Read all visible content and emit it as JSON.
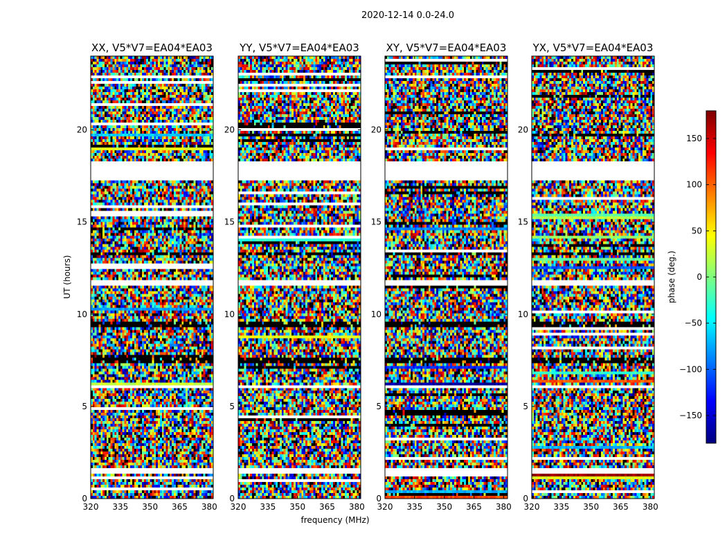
{
  "figure": {
    "suptitle": "2020-12-14 0.0-24.0"
  },
  "chart_data": {
    "type": "heatmap",
    "panels": [
      {
        "title": "XX, V5*V7=EA04*EA03"
      },
      {
        "title": "YY, V5*V7=EA04*EA03"
      },
      {
        "title": "XY, V5*V7=EA04*EA03"
      },
      {
        "title": "YX, V5*V7=EA04*EA03"
      }
    ],
    "xlabel": "frequency (MHz)",
    "ylabel": "UT (hours)",
    "xlim": [
      320,
      382
    ],
    "ylim": [
      0,
      24
    ],
    "xticks": [
      320,
      335,
      350,
      365,
      380
    ],
    "yticks": [
      0,
      5,
      10,
      15,
      20
    ],
    "colorbar": {
      "label": "phase (deg.)",
      "range": [
        -180,
        180
      ],
      "ticks": [
        -150,
        -100,
        -50,
        0,
        50,
        100,
        150
      ],
      "colormap": "jet",
      "minus_sign": "−"
    },
    "flagged_bands_hours": [
      [
        17.2,
        18.3
      ],
      [
        11.5,
        11.9
      ],
      [
        6.0,
        6.2
      ],
      [
        1.4,
        1.6
      ]
    ],
    "dark_bands_hours": [
      [
        9.3,
        9.6
      ],
      [
        7.4,
        7.7
      ],
      [
        13.2,
        13.4
      ]
    ],
    "colors": {
      "frame": "#000000",
      "flagged": "#ffffff"
    }
  }
}
